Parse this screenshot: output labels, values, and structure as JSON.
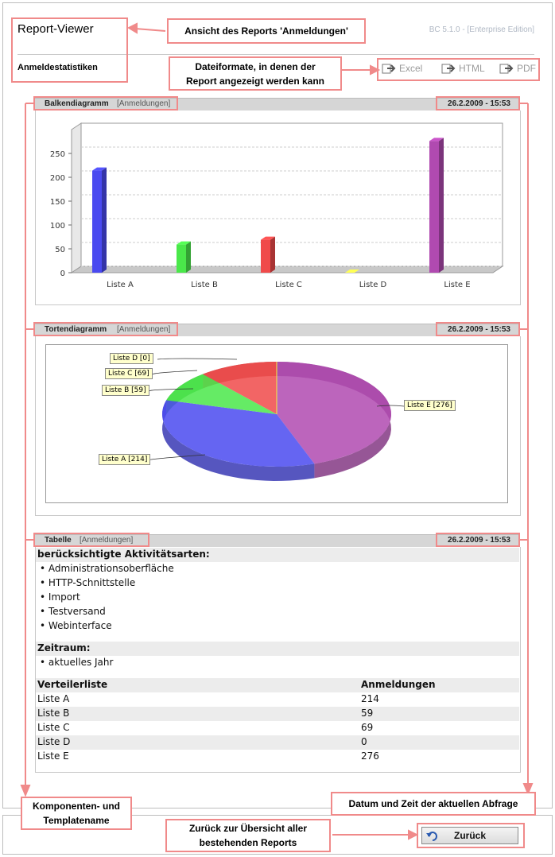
{
  "header": {
    "app_title": "Report-Viewer",
    "version": "BC 5.1.0 - [Enterprise Edition]",
    "report_title": "Anmeldestatistiken",
    "formats": [
      {
        "label": "Excel",
        "icon": "export-icon"
      },
      {
        "label": "HTML",
        "icon": "export-icon"
      },
      {
        "label": "PDF",
        "icon": "export-icon"
      }
    ]
  },
  "callouts": {
    "view": "Ansicht des Reports 'Anmeldungen'",
    "formats_line1": "Dateiformate, in denen der",
    "formats_line2": "Report angezeigt werden kann",
    "component_line1": "Komponenten- und",
    "component_line2": "Templatename",
    "datetime": "Datum und Zeit der aktuellen Abfrage",
    "back_line1": "Zurück zur Übersicht aller",
    "back_line2": "bestehenden Reports"
  },
  "panels": {
    "bar": {
      "title": "Balkendiagramm",
      "component": "[Anmeldungen]",
      "date": "26.2.2009 - 15:53"
    },
    "pie": {
      "title": "Tortendiagramm",
      "component": "[Anmeldungen]",
      "date": "26.2.2009 - 15:53"
    },
    "table": {
      "title": "Tabelle",
      "component": "[Anmeldungen]",
      "date": "26.2.2009 - 15:53"
    }
  },
  "chart_data": [
    {
      "type": "bar",
      "categories": [
        "Liste A",
        "Liste B",
        "Liste C",
        "Liste D",
        "Liste E"
      ],
      "values": [
        214,
        59,
        69,
        0,
        276
      ],
      "colors": [
        "#4a4af0",
        "#4ae84a",
        "#f04a4a",
        "#f0f04a",
        "#b04ab0"
      ],
      "yticks": [
        "0",
        "50",
        "100",
        "150",
        "200",
        "250"
      ],
      "ylim": [
        0,
        300
      ],
      "grid": true
    },
    {
      "type": "pie",
      "labels": [
        "Liste A [214]",
        "Liste B [59]",
        "Liste C [69]",
        "Liste D [0]",
        "Liste E [276]"
      ],
      "values": [
        214,
        59,
        69,
        0,
        276
      ],
      "colors": [
        "#4a4af0",
        "#4ae84a",
        "#f04a4a",
        "#f0f04a",
        "#b04ab0"
      ]
    }
  ],
  "table": {
    "activity_heading": "berücksichtigte Aktivitätsarten:",
    "activities": [
      "Administrationsoberfläche",
      "HTTP-Schnittstelle",
      "Import",
      "Testversand",
      "Webinterface"
    ],
    "period_heading": "Zeitraum:",
    "periods": [
      "aktuelles Jahr"
    ],
    "columns": [
      "Verteilerliste",
      "Anmeldungen"
    ],
    "rows": [
      [
        "Liste A",
        "214"
      ],
      [
        "Liste B",
        "59"
      ],
      [
        "Liste C",
        "69"
      ],
      [
        "Liste D",
        "0"
      ],
      [
        "Liste E",
        "276"
      ]
    ]
  },
  "footer": {
    "back_label": "Zurück"
  }
}
